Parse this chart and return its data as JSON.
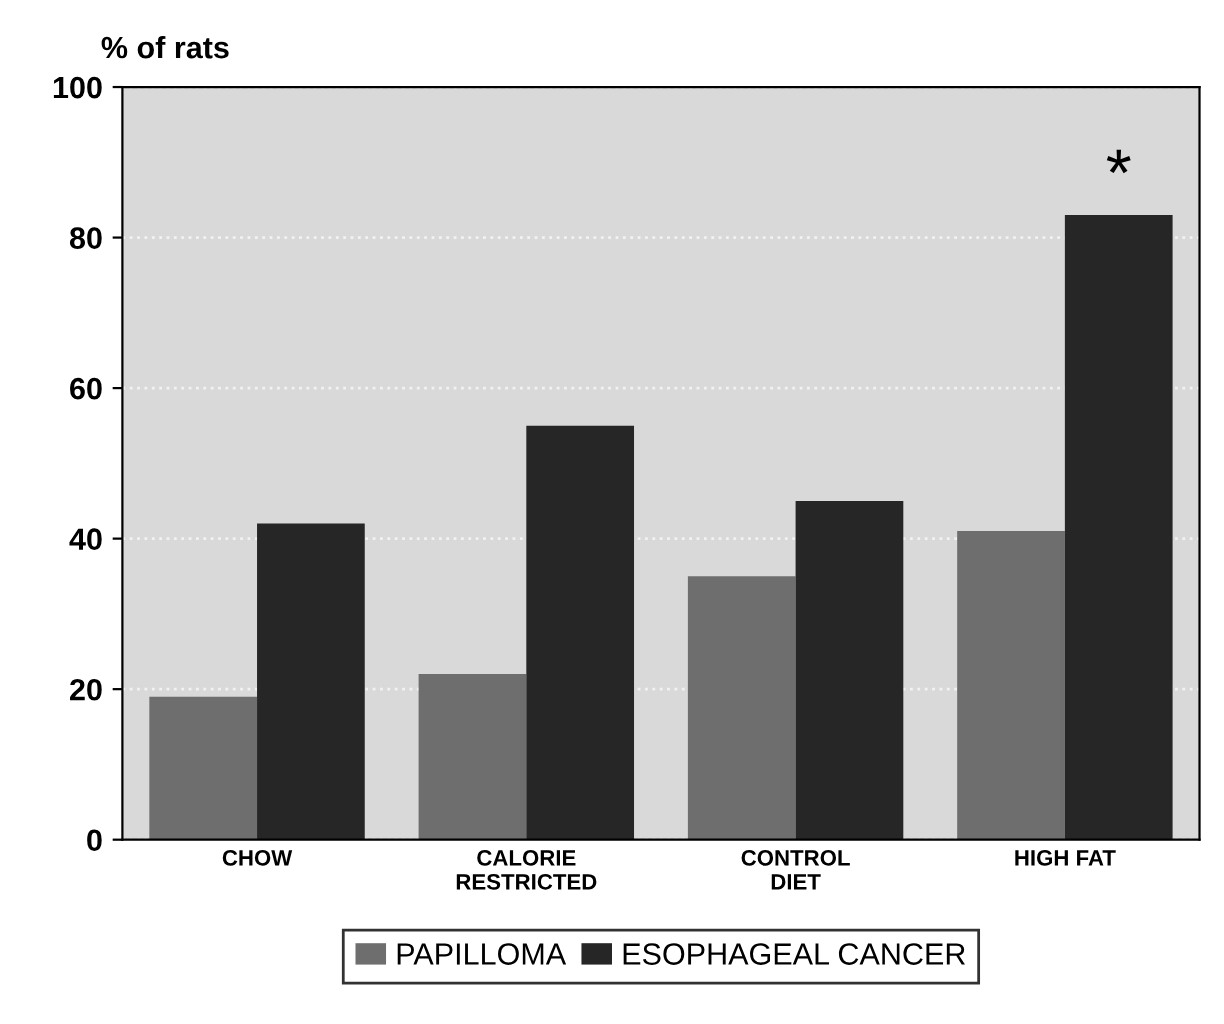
{
  "chart_data": {
    "type": "bar",
    "ylabel": "% of rats",
    "categories": [
      "CHOW",
      "CALORIE\nRESTRICTED",
      "CONTROL\nDIET",
      "HIGH FAT"
    ],
    "series": [
      {
        "name": "PAPILLOMA",
        "color": "#6e6e6e",
        "values": [
          19,
          22,
          35,
          41
        ]
      },
      {
        "name": "ESOPHAGEAL CANCER",
        "color": "#262626",
        "values": [
          42,
          55,
          45,
          83
        ]
      }
    ],
    "ylim": [
      0,
      100
    ],
    "yticks": [
      0,
      20,
      40,
      60,
      80,
      100
    ],
    "grid": "y",
    "legend": "bottom",
    "annotations": [
      {
        "text": "*",
        "x": "HIGH FAT",
        "y": 83
      }
    ]
  }
}
